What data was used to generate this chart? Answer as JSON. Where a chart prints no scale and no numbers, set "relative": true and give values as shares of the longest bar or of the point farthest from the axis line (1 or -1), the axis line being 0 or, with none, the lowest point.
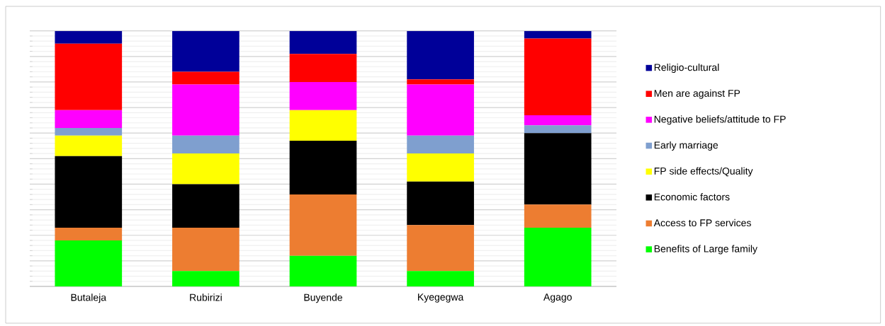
{
  "chart_data": {
    "type": "bar",
    "stacked": true,
    "relative": true,
    "grid": "y",
    "legend": "right",
    "categories": [
      "Butaleja",
      "Rubirizi",
      "Buyende",
      "Kyegegwa",
      "Agago"
    ],
    "series": [
      {
        "name": "Benefits of Large family",
        "color": "#00ff00",
        "values": [
          0.18,
          0.06,
          0.12,
          0.06,
          0.23
        ]
      },
      {
        "name": "Access to FP services",
        "color": "#ed7d31",
        "values": [
          0.05,
          0.17,
          0.24,
          0.18,
          0.09
        ]
      },
      {
        "name": "Economic factors",
        "color": "#000000",
        "values": [
          0.28,
          0.17,
          0.21,
          0.17,
          0.28
        ]
      },
      {
        "name": "FP side effects/Quality",
        "color": "#ffff00",
        "values": [
          0.08,
          0.12,
          0.12,
          0.11,
          0
        ]
      },
      {
        "name": "Early marriage",
        "color": "#7f9fcf",
        "values": [
          0.03,
          0.07,
          0,
          0.07,
          0.03
        ]
      },
      {
        "name": "Negative beliefs/attitude to FP",
        "color": "#ff00ff",
        "values": [
          0.07,
          0.2,
          0.11,
          0.2,
          0.04
        ]
      },
      {
        "name": "Men are against FP",
        "color": "#ff0000",
        "values": [
          0.26,
          0.05,
          0.11,
          0.02,
          0.3
        ]
      },
      {
        "name": "Religio-cultural",
        "color": "#000099",
        "values": [
          0.05,
          0.16,
          0.09,
          0.19,
          0.03
        ]
      }
    ]
  }
}
